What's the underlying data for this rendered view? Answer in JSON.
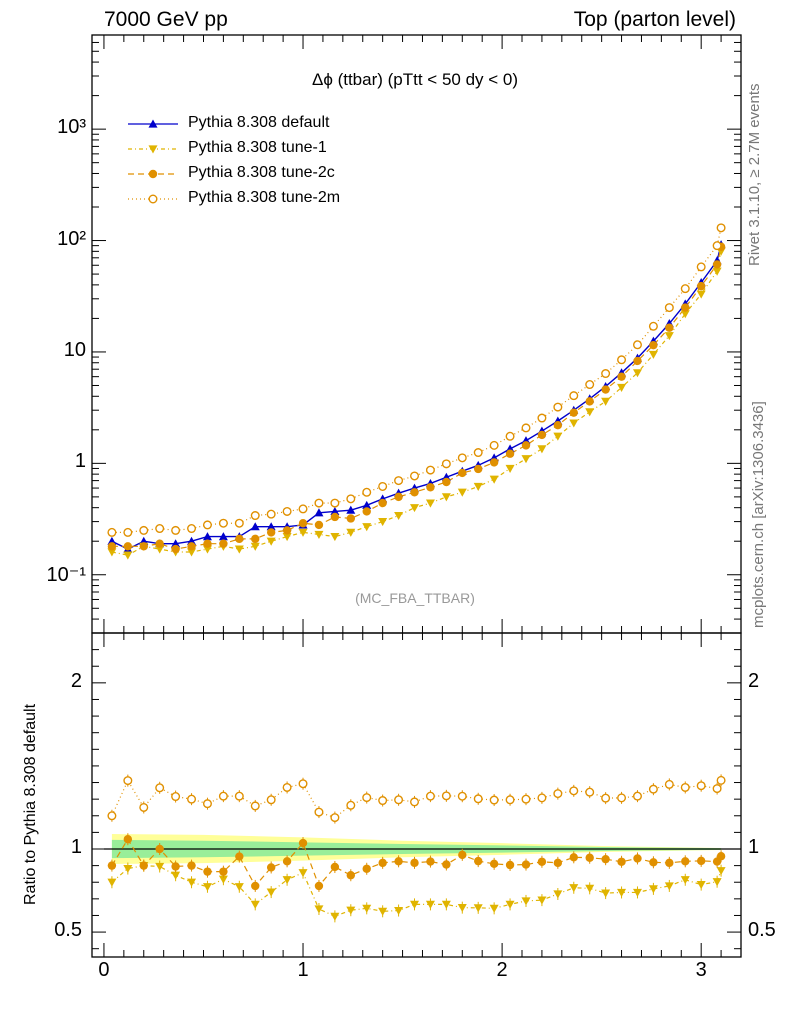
{
  "header": {
    "left": "7000 GeV pp",
    "right": "Top (parton level)"
  },
  "side_labels": {
    "rivet": "Rivet 3.1.10, ≥ 2.7M events",
    "mcplots": "mcplots.cern.ch [arXiv:1306.3436]"
  },
  "chart_data": {
    "type": "line",
    "title": "Δϕ (ttbar) (pTtt < 50 dy < 0)",
    "watermark": "(MC_FBA_TTBAR)",
    "ylabel_ratio": "Ratio to Pythia 8.308 default",
    "xlim": [
      -0.06,
      3.2
    ],
    "ylim_main": [
      0.03,
      7000
    ],
    "ylim_ratio": [
      0.35,
      2.3
    ],
    "y_scale_main": "log",
    "x_ticks": [
      {
        "v": 0,
        "label": "0"
      },
      {
        "v": 1,
        "label": "1"
      },
      {
        "v": 2,
        "label": "2"
      },
      {
        "v": 3,
        "label": "3"
      }
    ],
    "y_ticks_main": [
      {
        "v": 0.1,
        "label": "10⁻¹"
      },
      {
        "v": 1,
        "label": "1"
      },
      {
        "v": 10,
        "label": "10"
      },
      {
        "v": 100,
        "label": "10²"
      },
      {
        "v": 1000,
        "label": "10³"
      }
    ],
    "y_ticks_ratio": [
      {
        "v": 0.5,
        "label": "0.5"
      },
      {
        "v": 1,
        "label": "1"
      },
      {
        "v": 2,
        "label": "2"
      }
    ],
    "legend_position": "top-left",
    "x": [
      0.04,
      0.12,
      0.2,
      0.28,
      0.36,
      0.44,
      0.52,
      0.6,
      0.68,
      0.76,
      0.84,
      0.92,
      1.0,
      1.08,
      1.16,
      1.24,
      1.32,
      1.4,
      1.48,
      1.56,
      1.64,
      1.72,
      1.8,
      1.88,
      1.96,
      2.04,
      2.12,
      2.2,
      2.28,
      2.36,
      2.44,
      2.52,
      2.6,
      2.68,
      2.76,
      2.84,
      2.92,
      3.0,
      3.08,
      3.1
    ],
    "band_green": [
      [
        0.04,
        0.055
      ],
      [
        0.5,
        0.05
      ],
      [
        1.0,
        0.04
      ],
      [
        1.5,
        0.03
      ],
      [
        2.0,
        0.022
      ],
      [
        2.5,
        0.012
      ],
      [
        3.1,
        0.005
      ]
    ],
    "band_yellow": [
      [
        0.04,
        0.09
      ],
      [
        0.5,
        0.085
      ],
      [
        1.0,
        0.07
      ],
      [
        1.5,
        0.05
      ],
      [
        2.0,
        0.035
      ],
      [
        2.5,
        0.018
      ],
      [
        3.1,
        0.006
      ]
    ],
    "series": [
      {
        "name": "Pythia 8.308 default",
        "color": "#0000cc",
        "marker": "triangle-up",
        "dash": "",
        "values": [
          0.2,
          0.17,
          0.2,
          0.19,
          0.19,
          0.2,
          0.22,
          0.22,
          0.22,
          0.27,
          0.27,
          0.27,
          0.28,
          0.36,
          0.37,
          0.38,
          0.42,
          0.48,
          0.54,
          0.6,
          0.66,
          0.75,
          0.85,
          0.96,
          1.12,
          1.35,
          1.6,
          1.95,
          2.4,
          3.0,
          3.8,
          4.9,
          6.5,
          8.8,
          12.5,
          18,
          27,
          42,
          66,
          92
        ]
      },
      {
        "name": "Pythia 8.308 tune-1",
        "color": "#e0b400",
        "marker": "triangle-down",
        "dash": "4,3,1,3",
        "values": [
          0.16,
          0.15,
          0.18,
          0.17,
          0.16,
          0.16,
          0.17,
          0.18,
          0.17,
          0.18,
          0.2,
          0.22,
          0.24,
          0.23,
          0.22,
          0.24,
          0.27,
          0.3,
          0.34,
          0.4,
          0.44,
          0.5,
          0.55,
          0.62,
          0.72,
          0.9,
          1.1,
          1.35,
          1.75,
          2.3,
          2.9,
          3.6,
          4.8,
          6.5,
          9.5,
          14,
          22,
          33,
          53,
          80
        ]
      },
      {
        "name": "Pythia 8.308 tune-2c",
        "color": "#e09000",
        "marker": "circle",
        "dash": "6,4",
        "values": [
          0.18,
          0.18,
          0.18,
          0.19,
          0.17,
          0.18,
          0.19,
          0.19,
          0.21,
          0.21,
          0.24,
          0.25,
          0.29,
          0.28,
          0.33,
          0.32,
          0.37,
          0.44,
          0.5,
          0.55,
          0.61,
          0.68,
          0.82,
          0.89,
          1.02,
          1.22,
          1.45,
          1.8,
          2.2,
          2.85,
          3.6,
          4.6,
          6.0,
          8.3,
          11.5,
          16.5,
          25,
          39,
          61,
          88
        ]
      },
      {
        "name": "Pythia 8.308 tune-2m",
        "color": "#e09000",
        "marker": "circle-open",
        "dash": "1,3",
        "values": [
          0.24,
          0.24,
          0.25,
          0.26,
          0.25,
          0.26,
          0.28,
          0.29,
          0.29,
          0.34,
          0.35,
          0.37,
          0.39,
          0.44,
          0.44,
          0.48,
          0.55,
          0.62,
          0.7,
          0.77,
          0.87,
          0.99,
          1.12,
          1.25,
          1.45,
          1.75,
          2.08,
          2.55,
          3.2,
          4.05,
          5.1,
          6.4,
          8.5,
          11.6,
          17,
          25,
          37,
          58,
          90,
          130
        ]
      }
    ]
  }
}
